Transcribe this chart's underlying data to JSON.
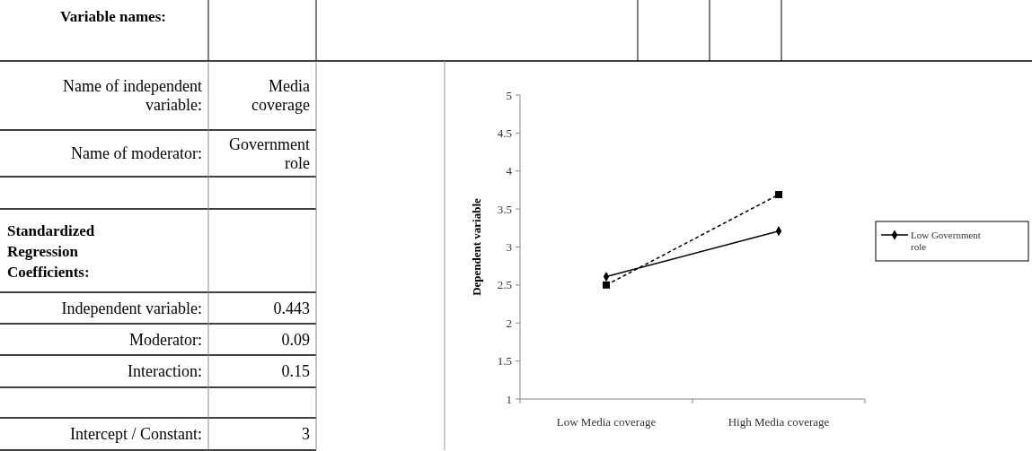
{
  "chart_data": [
    {
      "type": "other",
      "title": "Variable names:",
      "annotations": [
        "Name of independent variable:",
        "Media coverage",
        "Name of moderator:",
        "Government role",
        "Standardized Regression Coefficients:",
        "Independent variable:",
        "0.443",
        "Moderator:",
        "0.09",
        "Interaction:",
        "0.15",
        "Intercept / Constant:",
        "3"
      ]
    },
    {
      "type": "line",
      "categories": [
        "Low Media coverage",
        "High Media coverage"
      ],
      "ylabel": "Dependent variable",
      "ylim": [
        1,
        5
      ],
      "yticks": [
        1,
        1.5,
        2,
        2.5,
        3,
        3.5,
        4,
        4.5,
        5
      ],
      "legend": "right",
      "series": [
        {
          "name": "Low Government role",
          "color": "#000000",
          "values": [
            2.61,
            3.21
          ],
          "marker": "diamond",
          "line_style": "solid"
        },
        {
          "color": "#000000",
          "values": [
            2.5,
            3.69
          ],
          "marker": "square",
          "line_style": "dashed"
        }
      ]
    }
  ]
}
